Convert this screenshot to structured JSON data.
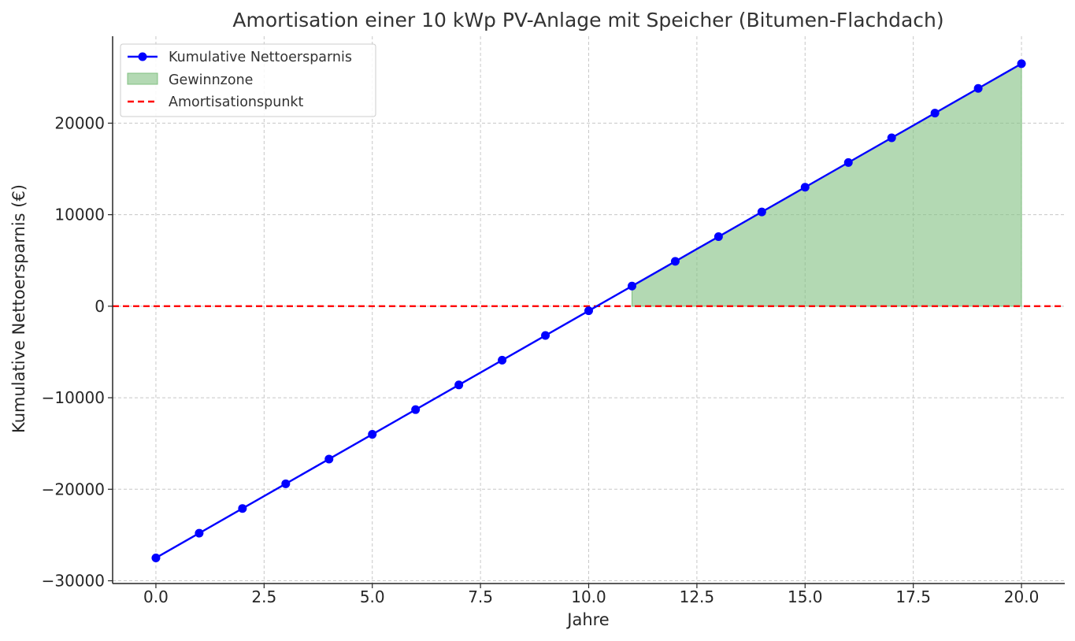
{
  "chart_data": {
    "type": "line",
    "title": "Amortisation einer 10 kWp PV-Anlage mit Speicher (Bitumen-Flachdach)",
    "xlabel": "Jahre",
    "ylabel": "Kumulative Nettoersparnis (€)",
    "xlim": [
      -1.0,
      21.0
    ],
    "ylim": [
      -30300,
      29500
    ],
    "xticks": [
      0.0,
      2.5,
      5.0,
      7.5,
      10.0,
      12.5,
      15.0,
      17.5,
      20.0
    ],
    "xtick_labels": [
      "0.0",
      "2.5",
      "5.0",
      "7.5",
      "10.0",
      "12.5",
      "15.0",
      "17.5",
      "20.0"
    ],
    "yticks": [
      -30000,
      -20000,
      -10000,
      0,
      10000,
      20000
    ],
    "ytick_labels": [
      "−30000",
      "−20000",
      "−10000",
      "0",
      "10000",
      "20000"
    ],
    "grid": true,
    "legend_position": "top-left",
    "series": [
      {
        "name": "Kumulative Nettoersparnis",
        "color": "#0000ff",
        "marker": "circle",
        "x": [
          0,
          1,
          2,
          3,
          4,
          5,
          6,
          7,
          8,
          9,
          10,
          11,
          12,
          13,
          14,
          15,
          16,
          17,
          18,
          19,
          20
        ],
        "y": [
          -27500,
          -24800,
          -22100,
          -19400,
          -16700,
          -14000,
          -11300,
          -8600,
          -5900,
          -3200,
          -500,
          2200,
          4900,
          7600,
          10300,
          13000,
          15700,
          18400,
          21100,
          23800,
          26500
        ]
      }
    ],
    "fill": {
      "name": "Gewinnzone",
      "color": "#80c080",
      "x_from": 11,
      "x_to": 20,
      "baseline": 0
    },
    "hline": {
      "name": "Amortisationspunkt",
      "y": 0,
      "color": "#ff0000",
      "style": "dashed"
    }
  }
}
